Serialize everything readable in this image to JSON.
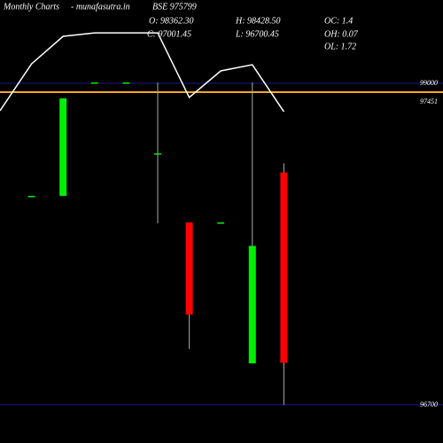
{
  "chart_data": {
    "type": "candlestick",
    "title": "Monthly Charts",
    "source": "- munafasutra.in",
    "symbol": "BSE 975799",
    "stats": [
      "O: 98362.30",
      "H: 98428.50",
      "OC: 1.4",
      "C: 97001.45",
      "L: 96700.45",
      "OH: 0.07",
      "OL: 1.72"
    ],
    "marker_label": "97451",
    "categories": [
      null,
      null,
      null,
      null,
      null,
      null,
      null,
      null,
      null,
      null
    ],
    "open": [
      null,
      98195,
      98195,
      99006,
      99006,
      98499,
      98005,
      98005,
      96997,
      98362.3
    ],
    "high": [
      null,
      98195,
      98892,
      99006,
      99006,
      99006,
      98005,
      98005,
      99006,
      98428.5
    ],
    "low": [
      null,
      98195,
      98195,
      99006,
      99006,
      97999,
      97099,
      98005,
      96997,
      96700.45
    ],
    "close": [
      null,
      98195,
      98892,
      99006,
      99006,
      98499,
      97346,
      98005,
      97837,
      97001.45
    ],
    "up_color": "#00ee00",
    "down_color": "#ff0000",
    "line": {
      "color": "#ffffff",
      "values": [
        98804,
        99139,
        99336,
        99361,
        99361,
        99361,
        98899,
        99089,
        99133,
        98797
      ]
    },
    "ylim": [
      96427,
      99596
    ],
    "yticks": [
      99000,
      96700
    ],
    "grid": true,
    "grid_color": "#1a1a8c"
  }
}
